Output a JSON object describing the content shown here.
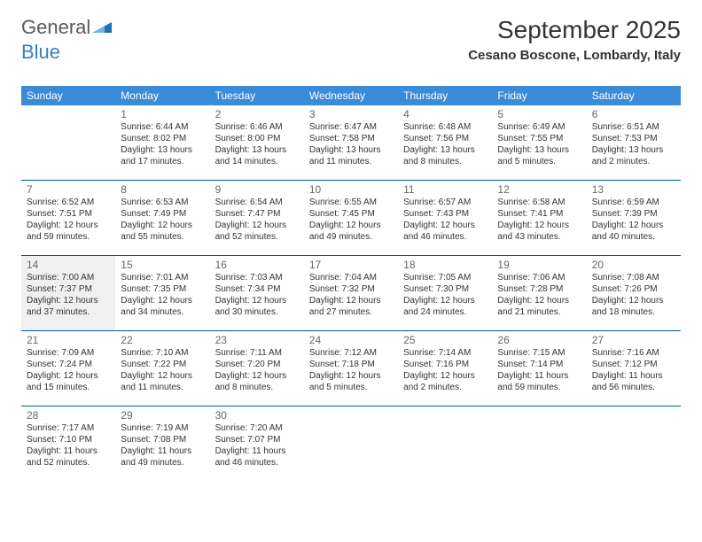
{
  "logo": {
    "text1": "General",
    "text2": "Blue"
  },
  "title": "September 2025",
  "subtitle": "Cesano Boscone, Lombardy, Italy",
  "colors": {
    "header_bg": "#3a8bd8",
    "header_fg": "#ffffff",
    "week_border": "#005a9e",
    "shaded_bg": "#f0f0f0",
    "logo_gray": "#5a5a5a",
    "logo_blue": "#3a7fc4"
  },
  "day_names": [
    "Sunday",
    "Monday",
    "Tuesday",
    "Wednesday",
    "Thursday",
    "Friday",
    "Saturday"
  ],
  "weeks": [
    [
      {
        "num": "",
        "sunrise": "",
        "sunset": "",
        "daylight": "",
        "shaded": false
      },
      {
        "num": "1",
        "sunrise": "Sunrise: 6:44 AM",
        "sunset": "Sunset: 8:02 PM",
        "daylight": "Daylight: 13 hours and 17 minutes.",
        "shaded": false
      },
      {
        "num": "2",
        "sunrise": "Sunrise: 6:46 AM",
        "sunset": "Sunset: 8:00 PM",
        "daylight": "Daylight: 13 hours and 14 minutes.",
        "shaded": false
      },
      {
        "num": "3",
        "sunrise": "Sunrise: 6:47 AM",
        "sunset": "Sunset: 7:58 PM",
        "daylight": "Daylight: 13 hours and 11 minutes.",
        "shaded": false
      },
      {
        "num": "4",
        "sunrise": "Sunrise: 6:48 AM",
        "sunset": "Sunset: 7:56 PM",
        "daylight": "Daylight: 13 hours and 8 minutes.",
        "shaded": false
      },
      {
        "num": "5",
        "sunrise": "Sunrise: 6:49 AM",
        "sunset": "Sunset: 7:55 PM",
        "daylight": "Daylight: 13 hours and 5 minutes.",
        "shaded": false
      },
      {
        "num": "6",
        "sunrise": "Sunrise: 6:51 AM",
        "sunset": "Sunset: 7:53 PM",
        "daylight": "Daylight: 13 hours and 2 minutes.",
        "shaded": false
      }
    ],
    [
      {
        "num": "7",
        "sunrise": "Sunrise: 6:52 AM",
        "sunset": "Sunset: 7:51 PM",
        "daylight": "Daylight: 12 hours and 59 minutes.",
        "shaded": false
      },
      {
        "num": "8",
        "sunrise": "Sunrise: 6:53 AM",
        "sunset": "Sunset: 7:49 PM",
        "daylight": "Daylight: 12 hours and 55 minutes.",
        "shaded": false
      },
      {
        "num": "9",
        "sunrise": "Sunrise: 6:54 AM",
        "sunset": "Sunset: 7:47 PM",
        "daylight": "Daylight: 12 hours and 52 minutes.",
        "shaded": false
      },
      {
        "num": "10",
        "sunrise": "Sunrise: 6:55 AM",
        "sunset": "Sunset: 7:45 PM",
        "daylight": "Daylight: 12 hours and 49 minutes.",
        "shaded": false
      },
      {
        "num": "11",
        "sunrise": "Sunrise: 6:57 AM",
        "sunset": "Sunset: 7:43 PM",
        "daylight": "Daylight: 12 hours and 46 minutes.",
        "shaded": false
      },
      {
        "num": "12",
        "sunrise": "Sunrise: 6:58 AM",
        "sunset": "Sunset: 7:41 PM",
        "daylight": "Daylight: 12 hours and 43 minutes.",
        "shaded": false
      },
      {
        "num": "13",
        "sunrise": "Sunrise: 6:59 AM",
        "sunset": "Sunset: 7:39 PM",
        "daylight": "Daylight: 12 hours and 40 minutes.",
        "shaded": false
      }
    ],
    [
      {
        "num": "14",
        "sunrise": "Sunrise: 7:00 AM",
        "sunset": "Sunset: 7:37 PM",
        "daylight": "Daylight: 12 hours and 37 minutes.",
        "shaded": true
      },
      {
        "num": "15",
        "sunrise": "Sunrise: 7:01 AM",
        "sunset": "Sunset: 7:35 PM",
        "daylight": "Daylight: 12 hours and 34 minutes.",
        "shaded": false
      },
      {
        "num": "16",
        "sunrise": "Sunrise: 7:03 AM",
        "sunset": "Sunset: 7:34 PM",
        "daylight": "Daylight: 12 hours and 30 minutes.",
        "shaded": false
      },
      {
        "num": "17",
        "sunrise": "Sunrise: 7:04 AM",
        "sunset": "Sunset: 7:32 PM",
        "daylight": "Daylight: 12 hours and 27 minutes.",
        "shaded": false
      },
      {
        "num": "18",
        "sunrise": "Sunrise: 7:05 AM",
        "sunset": "Sunset: 7:30 PM",
        "daylight": "Daylight: 12 hours and 24 minutes.",
        "shaded": false
      },
      {
        "num": "19",
        "sunrise": "Sunrise: 7:06 AM",
        "sunset": "Sunset: 7:28 PM",
        "daylight": "Daylight: 12 hours and 21 minutes.",
        "shaded": false
      },
      {
        "num": "20",
        "sunrise": "Sunrise: 7:08 AM",
        "sunset": "Sunset: 7:26 PM",
        "daylight": "Daylight: 12 hours and 18 minutes.",
        "shaded": false
      }
    ],
    [
      {
        "num": "21",
        "sunrise": "Sunrise: 7:09 AM",
        "sunset": "Sunset: 7:24 PM",
        "daylight": "Daylight: 12 hours and 15 minutes.",
        "shaded": false
      },
      {
        "num": "22",
        "sunrise": "Sunrise: 7:10 AM",
        "sunset": "Sunset: 7:22 PM",
        "daylight": "Daylight: 12 hours and 11 minutes.",
        "shaded": false
      },
      {
        "num": "23",
        "sunrise": "Sunrise: 7:11 AM",
        "sunset": "Sunset: 7:20 PM",
        "daylight": "Daylight: 12 hours and 8 minutes.",
        "shaded": false
      },
      {
        "num": "24",
        "sunrise": "Sunrise: 7:12 AM",
        "sunset": "Sunset: 7:18 PM",
        "daylight": "Daylight: 12 hours and 5 minutes.",
        "shaded": false
      },
      {
        "num": "25",
        "sunrise": "Sunrise: 7:14 AM",
        "sunset": "Sunset: 7:16 PM",
        "daylight": "Daylight: 12 hours and 2 minutes.",
        "shaded": false
      },
      {
        "num": "26",
        "sunrise": "Sunrise: 7:15 AM",
        "sunset": "Sunset: 7:14 PM",
        "daylight": "Daylight: 11 hours and 59 minutes.",
        "shaded": false
      },
      {
        "num": "27",
        "sunrise": "Sunrise: 7:16 AM",
        "sunset": "Sunset: 7:12 PM",
        "daylight": "Daylight: 11 hours and 56 minutes.",
        "shaded": false
      }
    ],
    [
      {
        "num": "28",
        "sunrise": "Sunrise: 7:17 AM",
        "sunset": "Sunset: 7:10 PM",
        "daylight": "Daylight: 11 hours and 52 minutes.",
        "shaded": false
      },
      {
        "num": "29",
        "sunrise": "Sunrise: 7:19 AM",
        "sunset": "Sunset: 7:08 PM",
        "daylight": "Daylight: 11 hours and 49 minutes.",
        "shaded": false
      },
      {
        "num": "30",
        "sunrise": "Sunrise: 7:20 AM",
        "sunset": "Sunset: 7:07 PM",
        "daylight": "Daylight: 11 hours and 46 minutes.",
        "shaded": false
      },
      {
        "num": "",
        "sunrise": "",
        "sunset": "",
        "daylight": "",
        "shaded": false
      },
      {
        "num": "",
        "sunrise": "",
        "sunset": "",
        "daylight": "",
        "shaded": false
      },
      {
        "num": "",
        "sunrise": "",
        "sunset": "",
        "daylight": "",
        "shaded": false
      },
      {
        "num": "",
        "sunrise": "",
        "sunset": "",
        "daylight": "",
        "shaded": false
      }
    ]
  ]
}
